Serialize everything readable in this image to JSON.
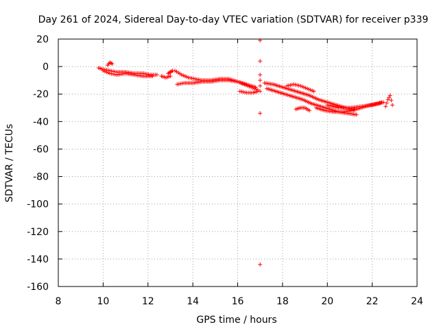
{
  "chart_data": {
    "type": "scatter",
    "title": "Day 261 of 2024, Sidereal Day-to-day VTEC variation (SDTVAR) for receiver p339",
    "xlabel": "GPS time / hours",
    "ylabel": "SDTVAR / TECUs",
    "xlim": [
      8,
      24
    ],
    "ylim": [
      -160,
      20
    ],
    "xticks": [
      8,
      10,
      12,
      14,
      16,
      18,
      20,
      22,
      24
    ],
    "yticks": [
      20,
      0,
      -20,
      -40,
      -60,
      -80,
      -100,
      -120,
      -140,
      -160
    ],
    "grid": true,
    "marker": "+",
    "series": [
      {
        "name": "SDTVAR",
        "color": "#ff0000",
        "segments": [
          {
            "x": [
              9.8,
              10.0,
              10.3,
              10.6,
              11.0,
              11.4,
              11.8,
              12.1,
              12.4
            ],
            "y": [
              -1,
              -2,
              -3,
              -4,
              -4,
              -5,
              -5,
              -6,
              -6
            ]
          },
          {
            "x": [
              10.0,
              10.3,
              10.6,
              11.0,
              11.4,
              11.8,
              12.2
            ],
            "y": [
              -3,
              -5,
              -6,
              -5,
              -6,
              -7,
              -7
            ]
          },
          {
            "x": [
              10.2,
              10.3,
              10.4
            ],
            "y": [
              1,
              3,
              2
            ]
          },
          {
            "x": [
              12.9,
              13.0,
              13.1
            ],
            "y": [
              -5,
              -4,
              -3
            ]
          },
          {
            "x": [
              13.2,
              13.5,
              13.8,
              14.1,
              14.4,
              14.8,
              15.2,
              15.6,
              16.0,
              16.3,
              16.6,
              16.9
            ],
            "y": [
              -3,
              -6,
              -8,
              -9,
              -10,
              -10,
              -9,
              -9,
              -11,
              -13,
              -15,
              -17
            ]
          },
          {
            "x": [
              13.3,
              13.6,
              14.0,
              14.4,
              14.8,
              15.2,
              15.6,
              16.0,
              16.4,
              16.8
            ],
            "y": [
              -13,
              -12,
              -12,
              -11,
              -11,
              -10,
              -10,
              -11,
              -13,
              -15
            ]
          },
          {
            "x": [
              12.6,
              12.8,
              13.0
            ],
            "y": [
              -7,
              -8,
              -7
            ]
          },
          {
            "x": [
              16.1,
              16.4,
              16.7,
              16.9
            ],
            "y": [
              -18,
              -19,
              -19,
              -18
            ]
          },
          {
            "x": [
              17.2,
              17.6,
              18.0,
              18.4,
              18.8,
              19.2,
              19.6,
              20.0,
              20.4,
              20.8,
              21.2
            ],
            "y": [
              -12,
              -13,
              -15,
              -17,
              -19,
              -21,
              -24,
              -26,
              -28,
              -30,
              -31
            ]
          },
          {
            "x": [
              17.3,
              17.7,
              18.1,
              18.5,
              18.9,
              19.3,
              19.7,
              20.1,
              20.5,
              20.9,
              21.3
            ],
            "y": [
              -16,
              -18,
              -20,
              -22,
              -24,
              -27,
              -29,
              -31,
              -33,
              -34,
              -35
            ]
          },
          {
            "x": [
              18.2,
              18.5,
              18.8,
              19.1,
              19.4
            ],
            "y": [
              -14,
              -13,
              -14,
              -16,
              -18
            ]
          },
          {
            "x": [
              18.6,
              18.8,
              19.0,
              19.2
            ],
            "y": [
              -31,
              -30,
              -30,
              -32
            ]
          },
          {
            "x": [
              19.5,
              19.9,
              20.3,
              20.7,
              21.1,
              21.5,
              21.9,
              22.3,
              22.5
            ],
            "y": [
              -30,
              -32,
              -33,
              -33,
              -32,
              -30,
              -28,
              -27,
              -26
            ]
          },
          {
            "x": [
              20.0,
              20.5,
              21.0,
              21.5,
              22.0,
              22.4
            ],
            "y": [
              -28,
              -30,
              -30,
              -29,
              -28,
              -26
            ]
          },
          {
            "x": [
              22.6,
              22.7,
              22.8,
              22.9
            ],
            "y": [
              -29,
              -24,
              -21,
              -28
            ]
          },
          {
            "x": [
              17.0,
              17.0,
              17.0,
              17.0,
              17.0,
              17.0,
              17.0,
              17.0
            ],
            "y": [
              19,
              4,
              -6,
              -10,
              -14,
              -18,
              -34,
              -144
            ]
          }
        ]
      }
    ]
  }
}
